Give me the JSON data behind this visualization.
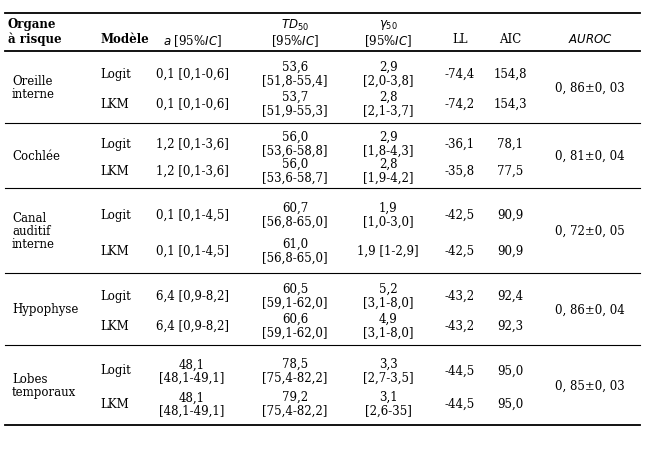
{
  "col_headers_line1": [
    "",
    "",
    "",
    "TD_{50}",
    "\\gamma_{50}",
    "",
    "",
    "AUROC"
  ],
  "col_headers_line2": [
    "Organe",
    "",
    "a [95%IC]",
    "[95%IC]",
    "[95%IC]",
    "LL",
    "AIC",
    ""
  ],
  "col_headers_line3": [
    "à risque",
    "Modèle",
    "",
    "",
    "",
    "",
    "",
    ""
  ],
  "rows": [
    {
      "organe": [
        "Oreille",
        "interne"
      ],
      "logit_a": "0,1 [0,1-0,6]",
      "logit_td50_v": "53,6",
      "logit_td50_ci": "[51,8-55,4]",
      "logit_g50_v": "2,9",
      "logit_g50_ci": "[2,0-3,8]",
      "logit_ll": "-74,4",
      "logit_aic": "154,8",
      "lkm_a": "0,1 [0,1-0,6]",
      "lkm_td50_v": "53,7",
      "lkm_td50_ci": "[51,9-55,3]",
      "lkm_g50_v": "2,8",
      "lkm_g50_ci": "[2,1-3,7]",
      "lkm_ll": "-74,2",
      "lkm_aic": "154,3",
      "auroc": "0, 86±0, 03"
    },
    {
      "organe": [
        "Cochlée"
      ],
      "logit_a": "1,2 [0,1-3,6]",
      "logit_td50_v": "56,0",
      "logit_td50_ci": "[53,6-58,8]",
      "logit_g50_v": "2,9",
      "logit_g50_ci": "[1,8-4,3]",
      "logit_ll": "-36,1",
      "logit_aic": "78,1",
      "lkm_a": "1,2 [0,1-3,6]",
      "lkm_td50_v": "56,0",
      "lkm_td50_ci": "[53,6-58,7]",
      "lkm_g50_v": "2,8",
      "lkm_g50_ci": "[1,9-4,2]",
      "lkm_ll": "-35,8",
      "lkm_aic": "77,5",
      "auroc": "0, 81±0, 04"
    },
    {
      "organe": [
        "Canal",
        "auditif",
        "interne"
      ],
      "logit_a": "0,1 [0,1-4,5]",
      "logit_td50_v": "60,7",
      "logit_td50_ci": "[56,8-65,0]",
      "logit_g50_v": "1,9",
      "logit_g50_ci": "[1,0-3,0]",
      "logit_ll": "-42,5",
      "logit_aic": "90,9",
      "lkm_a": "0,1 [0,1-4,5]",
      "lkm_td50_v": "61,0",
      "lkm_td50_ci": "[56,8-65,0]",
      "lkm_g50_v": "1,9 [1-2,9]",
      "lkm_g50_ci": "",
      "lkm_ll": "-42,5",
      "lkm_aic": "90,9",
      "auroc": "0, 72±0, 05"
    },
    {
      "organe": [
        "Hypophyse"
      ],
      "logit_a": "6,4 [0,9-8,2]",
      "logit_td50_v": "60,5",
      "logit_td50_ci": "[59,1-62,0]",
      "logit_g50_v": "5,2",
      "logit_g50_ci": "[3,1-8,0]",
      "logit_ll": "-43,2",
      "logit_aic": "92,4",
      "lkm_a": "6,4 [0,9-8,2]",
      "lkm_td50_v": "60,6",
      "lkm_td50_ci": "[59,1-62,0]",
      "lkm_g50_v": "4,9",
      "lkm_g50_ci": "[3,1-8,0]",
      "lkm_ll": "-43,2",
      "lkm_aic": "92,3",
      "auroc": "0, 86±0, 04"
    },
    {
      "organe": [
        "Lobes",
        "temporaux"
      ],
      "logit_a_v": "48,1",
      "logit_a_ci": "[48,1-49,1]",
      "logit_td50_v": "78,5",
      "logit_td50_ci": "[75,4-82,2]",
      "logit_g50_v": "3,3",
      "logit_g50_ci": "[2,7-3,5]",
      "logit_ll": "-44,5",
      "logit_aic": "95,0",
      "lkm_a_v": "48,1",
      "lkm_a_ci": "[48,1-49,1]",
      "lkm_td50_v": "79,2",
      "lkm_td50_ci": "[75,4-82,2]",
      "lkm_g50_v": "3,1",
      "lkm_g50_ci": "[2,6-35]",
      "lkm_ll": "-44,5",
      "lkm_aic": "95,0",
      "auroc": "0, 85±0, 03"
    }
  ]
}
